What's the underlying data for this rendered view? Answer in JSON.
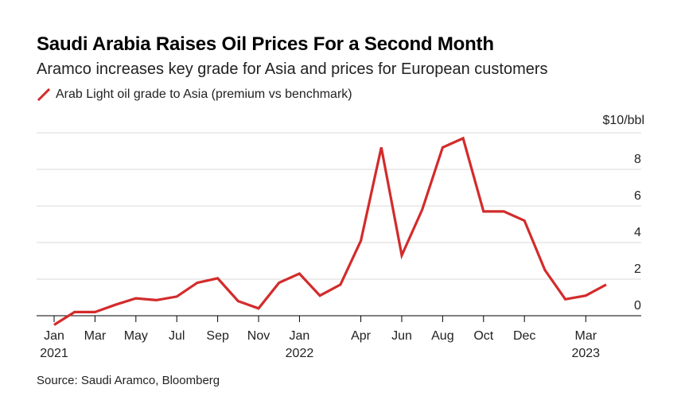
{
  "chart_data": {
    "type": "line",
    "title": "Saudi Arabia Raises Oil Prices For a Second Month",
    "subtitle": "Aramco increases key grade for Asia and prices for European customers",
    "unit_label": "$10/bbl",
    "ylim": [
      -0.8,
      10
    ],
    "yticks": [
      0,
      2,
      4,
      6,
      8
    ],
    "grid": true,
    "legend_position": "top-left",
    "series": [
      {
        "name": "Arab Light oil grade to Asia (premium vs benchmark)",
        "color": "#d32b2b",
        "x": [
          0,
          1,
          2,
          3,
          4,
          5,
          6,
          7,
          8,
          9,
          10,
          11,
          12,
          13,
          14,
          15,
          16,
          17,
          18,
          19,
          20,
          21,
          22,
          23,
          24,
          25,
          26,
          27
        ],
        "values": [
          -0.5,
          0.2,
          0.2,
          0.6,
          0.95,
          0.85,
          1.05,
          1.8,
          2.05,
          0.8,
          0.4,
          1.8,
          2.3,
          1.1,
          1.7,
          4.1,
          9.2,
          3.3,
          5.8,
          9.2,
          9.7,
          5.7,
          5.7,
          5.2,
          2.5,
          0.9,
          1.1,
          1.7
        ]
      }
    ],
    "xticks": [
      {
        "pos": 0,
        "label": "Jan",
        "year": "2021"
      },
      {
        "pos": 2,
        "label": "Mar"
      },
      {
        "pos": 4,
        "label": "May"
      },
      {
        "pos": 6,
        "label": "Jul"
      },
      {
        "pos": 8,
        "label": "Sep"
      },
      {
        "pos": 10,
        "label": "Nov"
      },
      {
        "pos": 12,
        "label": "Jan",
        "year": "2022"
      },
      {
        "pos": 15,
        "label": "Apr"
      },
      {
        "pos": 17,
        "label": "Jun"
      },
      {
        "pos": 19,
        "label": "Aug"
      },
      {
        "pos": 21,
        "label": "Oct"
      },
      {
        "pos": 23,
        "label": "Dec"
      },
      {
        "pos": 26,
        "label": "Mar",
        "year": "2023"
      }
    ],
    "xlim": [
      0,
      27
    ]
  },
  "source": "Source: Saudi Aramco, Bloomberg"
}
